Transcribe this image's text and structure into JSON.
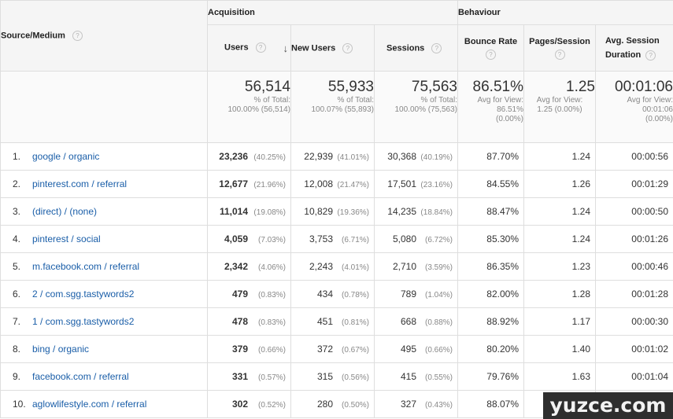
{
  "header": {
    "dimension_label": "Source/Medium",
    "group_acquisition": "Acquisition",
    "group_behaviour": "Behaviour",
    "columns": {
      "users": "Users",
      "new_users": "New Users",
      "sessions": "Sessions",
      "bounce_rate": "Bounce Rate",
      "pages_session": "Pages/Session",
      "avg_session_line1": "Avg. Session",
      "avg_session_line2": "Duration"
    },
    "help_glyph": "?",
    "sort_glyph": "↓"
  },
  "totals": {
    "users": {
      "value": "56,514",
      "sub1": "% of Total:",
      "sub2": "100.00% (56,514)"
    },
    "new_users": {
      "value": "55,933",
      "sub1": "% of Total:",
      "sub2": "100.07% (55,893)"
    },
    "sessions": {
      "value": "75,563",
      "sub1": "% of Total:",
      "sub2": "100.00% (75,563)"
    },
    "bounce_rate": {
      "value": "86.51%",
      "sub1": "Avg for View:",
      "sub2": "86.51%",
      "sub3": "(0.00%)"
    },
    "pages_session": {
      "value": "1.25",
      "sub1": "Avg for View:",
      "sub2": "1.25 (0.00%)"
    },
    "avg_duration": {
      "value": "00:01:06",
      "sub1": "Avg for View:",
      "sub2": "00:01:06",
      "sub3": "(0.00%)"
    }
  },
  "rows": [
    {
      "idx": "1.",
      "source": "google / organic",
      "users": "23,236",
      "users_pct": "(40.25%)",
      "new_users": "22,939",
      "new_users_pct": "(41.01%)",
      "sessions": "30,368",
      "sessions_pct": "(40.19%)",
      "bounce": "87.70%",
      "pages": "1.24",
      "duration": "00:00:56"
    },
    {
      "idx": "2.",
      "source": "pinterest.com / referral",
      "users": "12,677",
      "users_pct": "(21.96%)",
      "new_users": "12,008",
      "new_users_pct": "(21.47%)",
      "sessions": "17,501",
      "sessions_pct": "(23.16%)",
      "bounce": "84.55%",
      "pages": "1.26",
      "duration": "00:01:29"
    },
    {
      "idx": "3.",
      "source": "(direct) / (none)",
      "users": "11,014",
      "users_pct": "(19.08%)",
      "new_users": "10,829",
      "new_users_pct": "(19.36%)",
      "sessions": "14,235",
      "sessions_pct": "(18.84%)",
      "bounce": "88.47%",
      "pages": "1.24",
      "duration": "00:00:50"
    },
    {
      "idx": "4.",
      "source": "pinterest / social",
      "users": "4,059",
      "users_pct": "(7.03%)",
      "new_users": "3,753",
      "new_users_pct": "(6.71%)",
      "sessions": "5,080",
      "sessions_pct": "(6.72%)",
      "bounce": "85.30%",
      "pages": "1.24",
      "duration": "00:01:26"
    },
    {
      "idx": "5.",
      "source": "m.facebook.com / referral",
      "users": "2,342",
      "users_pct": "(4.06%)",
      "new_users": "2,243",
      "new_users_pct": "(4.01%)",
      "sessions": "2,710",
      "sessions_pct": "(3.59%)",
      "bounce": "86.35%",
      "pages": "1.23",
      "duration": "00:00:46"
    },
    {
      "idx": "6.",
      "source": "2 / com.sgg.tastywords2",
      "users": "479",
      "users_pct": "(0.83%)",
      "new_users": "434",
      "new_users_pct": "(0.78%)",
      "sessions": "789",
      "sessions_pct": "(1.04%)",
      "bounce": "82.00%",
      "pages": "1.28",
      "duration": "00:01:28"
    },
    {
      "idx": "7.",
      "source": "1 / com.sgg.tastywords2",
      "users": "478",
      "users_pct": "(0.83%)",
      "new_users": "451",
      "new_users_pct": "(0.81%)",
      "sessions": "668",
      "sessions_pct": "(0.88%)",
      "bounce": "88.92%",
      "pages": "1.17",
      "duration": "00:00:30"
    },
    {
      "idx": "8.",
      "source": "bing / organic",
      "users": "379",
      "users_pct": "(0.66%)",
      "new_users": "372",
      "new_users_pct": "(0.67%)",
      "sessions": "495",
      "sessions_pct": "(0.66%)",
      "bounce": "80.20%",
      "pages": "1.40",
      "duration": "00:01:02"
    },
    {
      "idx": "9.",
      "source": "facebook.com / referral",
      "users": "331",
      "users_pct": "(0.57%)",
      "new_users": "315",
      "new_users_pct": "(0.56%)",
      "sessions": "415",
      "sessions_pct": "(0.55%)",
      "bounce": "79.76%",
      "pages": "1.63",
      "duration": "00:01:04"
    },
    {
      "idx": "10.",
      "source": "aglowlifestyle.com / referral",
      "users": "302",
      "users_pct": "(0.52%)",
      "new_users": "280",
      "new_users_pct": "(0.50%)",
      "sessions": "327",
      "sessions_pct": "(0.43%)",
      "bounce": "88.07%",
      "pages": "",
      "duration": ""
    }
  ],
  "watermark": "yuzce.com",
  "colors": {
    "link": "#1a5ea8",
    "header_bg": "#f5f5f5",
    "border": "#dedede",
    "muted": "#888888"
  }
}
